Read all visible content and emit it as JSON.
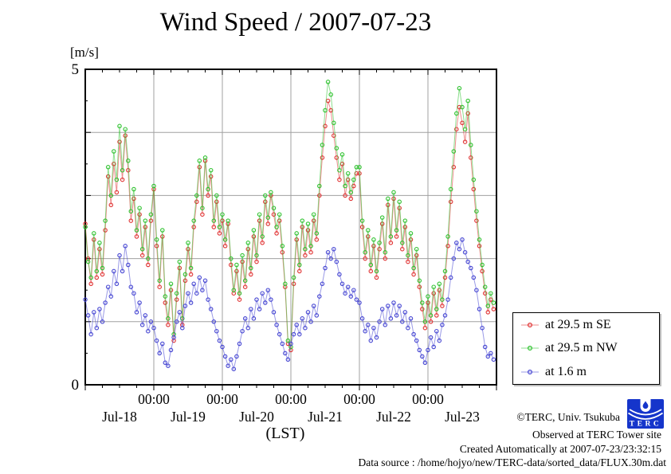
{
  "footer": {
    "copyright": "©TERC, Univ. Tsukuba",
    "observed": "Observed at TERC Tower site",
    "created": "Created Automatically at 2007-07-23/23:32:15",
    "data_source": "Data source : /home/hojyo/new/TERC-data/sorted_data/FLUX.30m.dat",
    "logo_text": "TERC"
  },
  "colors": {
    "axis": "#000000",
    "grid": "#a0a0a0",
    "series_se": "#e03232",
    "series_nw": "#2fc22f",
    "series_16m": "#4545d2",
    "logo_blue": "#1535cb"
  },
  "chart_data": {
    "type": "line",
    "title": "Wind Speed / 2007-07-23",
    "ylabel": "[m/s]",
    "xlabel": "(LST)",
    "ylim": [
      0,
      5
    ],
    "xlim_days": [
      0,
      6
    ],
    "grid": true,
    "marker": "open-circle",
    "legend_position": "outside-right-bottom",
    "x_origin": "Jul-18 00:00",
    "sample_interval_hours": 1,
    "x_major_tick_labels": [
      "00:00",
      "00:00",
      "00:00",
      "00:00",
      "00:00"
    ],
    "day_labels": [
      "Jul-18",
      "Jul-19",
      "Jul-20",
      "Jul-21",
      "Jul-22",
      "Jul-23"
    ],
    "y_tick_positions": [
      0,
      5
    ],
    "y_tick_texts": [
      "0",
      "5"
    ],
    "series": [
      {
        "name": "at 29.5 m SE",
        "color": "#e03232",
        "values": [
          2.55,
          2.0,
          1.6,
          2.3,
          1.7,
          2.15,
          1.75,
          2.45,
          3.3,
          2.85,
          3.5,
          3.05,
          3.85,
          3.25,
          3.95,
          3.4,
          2.6,
          2.95,
          2.35,
          2.7,
          2.05,
          2.5,
          1.9,
          2.6,
          3.1,
          2.2,
          1.55,
          2.35,
          1.3,
          0.95,
          1.5,
          0.7,
          1.35,
          1.85,
          0.95,
          1.65,
          2.15,
          1.75,
          2.5,
          2.9,
          3.45,
          2.7,
          3.55,
          3.0,
          3.3,
          2.5,
          2.9,
          2.4,
          2.6,
          2.2,
          2.55,
          1.9,
          1.45,
          1.8,
          1.35,
          1.95,
          1.55,
          2.15,
          1.75,
          2.35,
          1.95,
          2.6,
          2.25,
          2.9,
          2.55,
          3.0,
          2.7,
          2.4,
          2.6,
          2.1,
          1.55,
          0.65,
          0.55,
          1.6,
          2.3,
          1.8,
          2.5,
          2.05,
          2.45,
          2.1,
          2.6,
          2.3,
          3.0,
          3.6,
          4.1,
          4.5,
          4.35,
          3.95,
          3.6,
          3.25,
          3.5,
          3.0,
          3.25,
          2.95,
          3.15,
          3.35,
          3.35,
          2.5,
          2.0,
          2.35,
          1.8,
          2.2,
          1.7,
          2.15,
          2.55,
          2.0,
          2.85,
          2.25,
          2.95,
          2.35,
          2.8,
          2.15,
          2.5,
          1.95,
          2.3,
          1.75,
          2.05,
          1.55,
          1.2,
          0.9,
          1.3,
          1.0,
          1.45,
          1.1,
          1.5,
          1.25,
          1.7,
          2.2,
          2.9,
          3.45,
          4.05,
          4.4,
          4.15,
          3.85,
          4.3,
          3.6,
          3.1,
          2.6,
          2.2,
          1.8,
          1.45,
          1.15,
          1.35,
          1.2
        ]
      },
      {
        "name": "at 29.5 m NW",
        "color": "#2fc22f",
        "values": [
          2.5,
          1.95,
          1.7,
          2.4,
          1.8,
          2.25,
          1.85,
          2.6,
          3.45,
          3.0,
          3.7,
          3.25,
          4.1,
          3.4,
          4.05,
          3.55,
          2.75,
          3.1,
          2.45,
          2.8,
          2.15,
          2.6,
          2.0,
          2.7,
          3.15,
          2.3,
          1.65,
          2.45,
          1.4,
          1.05,
          1.6,
          0.8,
          1.45,
          1.95,
          1.05,
          1.75,
          2.25,
          1.85,
          2.6,
          3.0,
          3.55,
          2.8,
          3.6,
          3.1,
          3.4,
          2.6,
          3.0,
          2.5,
          2.7,
          2.3,
          2.6,
          2.0,
          1.5,
          1.9,
          1.45,
          2.05,
          1.65,
          2.25,
          1.85,
          2.45,
          2.05,
          2.7,
          2.35,
          3.0,
          2.65,
          3.05,
          2.8,
          2.5,
          2.7,
          2.2,
          1.6,
          0.7,
          0.6,
          1.7,
          2.4,
          1.9,
          2.6,
          2.15,
          2.55,
          2.2,
          2.7,
          2.4,
          3.15,
          3.8,
          4.35,
          4.8,
          4.6,
          4.15,
          3.75,
          3.4,
          3.65,
          3.15,
          3.35,
          3.05,
          3.25,
          3.45,
          3.45,
          2.6,
          2.1,
          2.45,
          1.9,
          2.3,
          1.8,
          2.25,
          2.65,
          2.1,
          2.95,
          2.35,
          3.05,
          2.45,
          2.9,
          2.25,
          2.6,
          2.05,
          2.4,
          1.85,
          2.15,
          1.65,
          1.3,
          1.0,
          1.4,
          1.1,
          1.55,
          1.2,
          1.6,
          1.35,
          1.8,
          2.35,
          3.1,
          3.7,
          4.3,
          4.7,
          4.4,
          4.05,
          4.5,
          3.8,
          3.25,
          2.75,
          2.3,
          1.9,
          1.55,
          1.25,
          1.45,
          1.3
        ]
      },
      {
        "name": "at 1.6 m",
        "color": "#4545d2",
        "values": [
          1.35,
          1.1,
          0.8,
          1.15,
          0.9,
          1.2,
          1.0,
          1.3,
          1.55,
          1.4,
          1.8,
          1.6,
          2.05,
          1.8,
          2.2,
          1.9,
          1.55,
          1.45,
          1.15,
          1.3,
          0.95,
          1.1,
          0.85,
          1.0,
          0.9,
          0.7,
          0.5,
          0.65,
          0.35,
          0.3,
          0.55,
          0.75,
          1.0,
          1.15,
          0.9,
          1.25,
          1.45,
          1.3,
          1.6,
          1.45,
          1.7,
          1.5,
          1.65,
          1.35,
          1.2,
          1.0,
          0.85,
          0.7,
          0.6,
          0.45,
          0.3,
          0.4,
          0.25,
          0.45,
          0.65,
          0.85,
          1.05,
          0.9,
          1.2,
          1.05,
          1.35,
          1.2,
          1.45,
          1.3,
          1.5,
          1.35,
          1.15,
          0.95,
          0.8,
          0.65,
          0.5,
          0.4,
          0.65,
          0.8,
          0.95,
          0.8,
          1.05,
          0.9,
          1.15,
          1.0,
          1.25,
          1.1,
          1.4,
          1.6,
          1.85,
          2.1,
          2.0,
          2.15,
          1.95,
          1.75,
          1.6,
          1.45,
          1.55,
          1.4,
          1.5,
          1.35,
          1.3,
          1.05,
          0.85,
          0.95,
          0.7,
          0.9,
          0.75,
          1.0,
          1.2,
          0.95,
          1.25,
          1.05,
          1.3,
          1.1,
          1.25,
          1.0,
          1.15,
          0.9,
          1.05,
          0.8,
          0.7,
          0.55,
          0.45,
          0.35,
          0.55,
          0.75,
          0.6,
          0.85,
          0.7,
          0.95,
          1.1,
          1.35,
          1.7,
          2.0,
          2.25,
          2.15,
          2.3,
          2.1,
          1.95,
          1.85,
          1.7,
          1.5,
          1.2,
          0.9,
          0.6,
          0.45,
          0.5,
          0.4
        ]
      }
    ]
  }
}
